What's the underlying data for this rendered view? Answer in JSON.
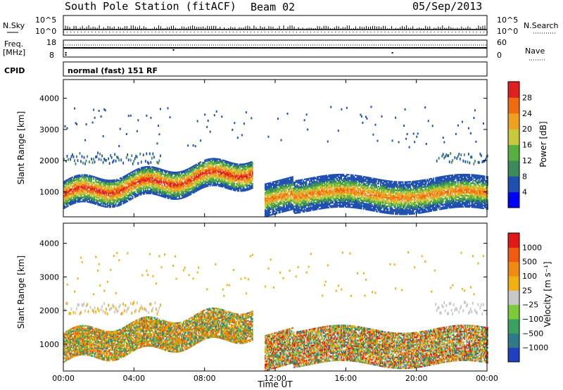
{
  "header": {
    "station": "South Pole Station (fitACF)",
    "beam": "Beam 02",
    "date": "05/Sep/2013"
  },
  "top_panels": {
    "nsky_label": "N.Sky",
    "nsearch_label": "N.Search",
    "nsky_ticks": [
      "10^5",
      "10^0"
    ],
    "nsearch_ticks": [
      "10^5",
      "10^0"
    ],
    "freq_label_1": "Freq.",
    "freq_label_2": "[MHz]",
    "freq_ticks": [
      "18",
      "8"
    ],
    "nave_ticks": [
      "60",
      "0"
    ],
    "nave_label": "Nave",
    "cpid_label": "CPID",
    "cpid_value": "normal (fast) 151 RF"
  },
  "chart_data": [
    {
      "type": "heatmap",
      "name": "power",
      "ylabel": "Slant Range [km]",
      "xlabel": "Time UT",
      "x_range_hours": [
        0,
        24
      ],
      "ylim": [
        200,
        4600
      ],
      "x_tick_labels": [
        "00:00",
        "04:00",
        "08:00",
        "12:00",
        "16:00",
        "20:00",
        "00:00"
      ],
      "y_tick_labels": [
        "1000",
        "2000",
        "3000",
        "4000"
      ],
      "y_ticks": [
        1000,
        2000,
        3000,
        4000
      ],
      "colorbar": {
        "label": "Power [dB]",
        "labels": [
          "4",
          "8",
          "12",
          "16",
          "20",
          "24",
          "28"
        ],
        "colors": [
          "#0000ff",
          "#1f4fb0",
          "#3a8a5a",
          "#55b040",
          "#c8c83c",
          "#f0a020",
          "#f06a10",
          "#e02020"
        ]
      }
    },
    {
      "type": "heatmap",
      "name": "velocity",
      "ylabel": "Slant Range [km]",
      "xlabel": "Time UT",
      "x_range_hours": [
        0,
        24
      ],
      "ylim": [
        200,
        4600
      ],
      "x_tick_labels": [
        "00:00",
        "04:00",
        "08:00",
        "12:00",
        "16:00",
        "20:00",
        "00:00"
      ],
      "y_tick_labels": [
        "1000",
        "2000",
        "3000",
        "4000"
      ],
      "y_ticks": [
        1000,
        2000,
        3000,
        4000
      ],
      "colorbar": {
        "label": "Velocity [m s⁻¹]",
        "labels": [
          "1000",
          "500",
          "100",
          "25",
          "−25",
          "−100",
          "−500",
          "−1000"
        ],
        "colors": [
          "#2040c0",
          "#2f7a8a",
          "#3aa060",
          "#7ecb3a",
          "#c8c8c8",
          "#f0b010",
          "#f08a10",
          "#ef5a10",
          "#e01818"
        ]
      }
    }
  ],
  "x_axis_title": "Time UT"
}
